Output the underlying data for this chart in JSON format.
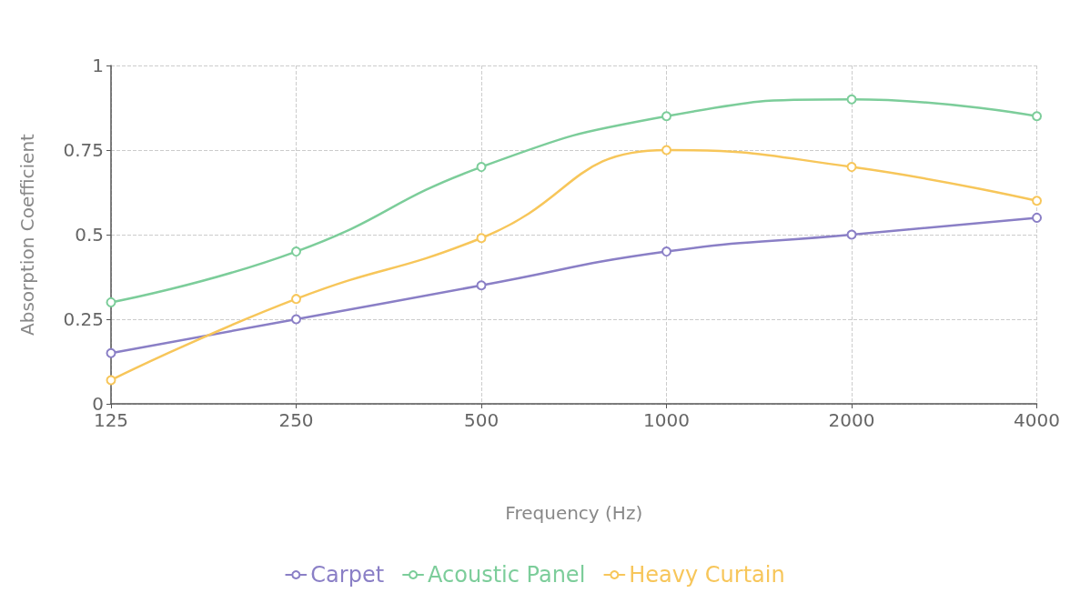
{
  "chart_data": {
    "type": "line",
    "xlabel": "Frequency (Hz)",
    "ylabel": "Absorption Coefficient",
    "categories": [
      "125",
      "250",
      "500",
      "1000",
      "2000",
      "4000"
    ],
    "ylim": [
      0,
      1
    ],
    "yticks": [
      0,
      0.25,
      0.5,
      0.75,
      1
    ],
    "grid": true,
    "legend": "bottom",
    "marker": "circle",
    "line_style": "solid",
    "series": [
      {
        "name": "Carpet",
        "color": "#8a7fc6",
        "values": [
          0.15,
          0.25,
          0.35,
          0.45,
          0.5,
          0.55
        ]
      },
      {
        "name": "Acoustic Panel",
        "color": "#7ccd9a",
        "values": [
          0.3,
          0.45,
          0.7,
          0.85,
          0.9,
          0.85
        ]
      },
      {
        "name": "Heavy Curtain",
        "color": "#f7c65a",
        "values": [
          0.07,
          0.31,
          0.49,
          0.75,
          0.7,
          0.6
        ]
      }
    ]
  }
}
